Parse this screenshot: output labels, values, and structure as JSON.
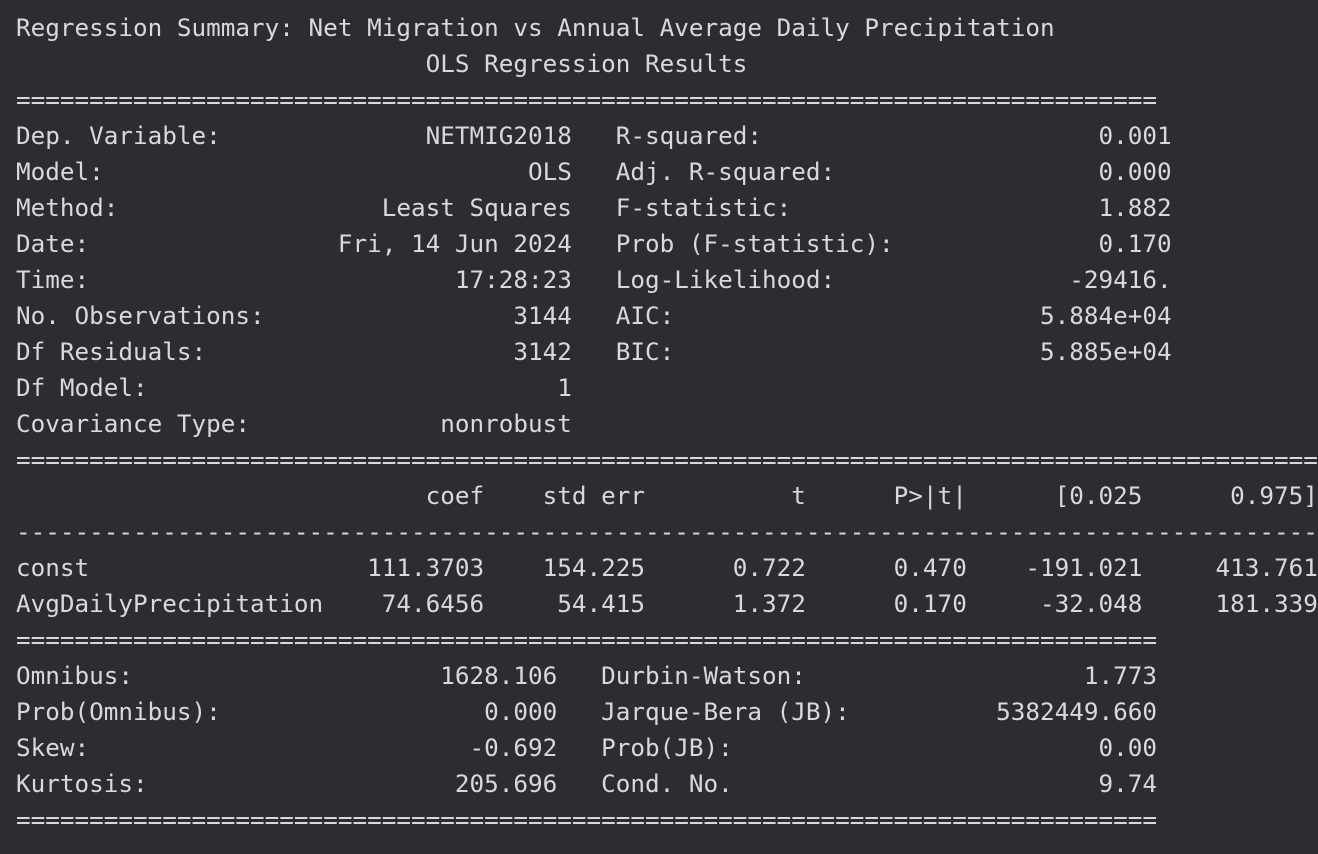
{
  "console": {
    "lines": [
      "Regression Summary: Net Migration vs Annual Average Daily Precipitation",
      "                            OLS Regression Results                            ",
      "==============================================================================",
      "Dep. Variable:              NETMIG2018   R-squared:                       0.001",
      "Model:                             OLS   Adj. R-squared:                  0.000",
      "Method:                  Least Squares   F-statistic:                     1.882",
      "Date:                 Fri, 14 Jun 2024   Prob (F-statistic):              0.170",
      "Time:                         17:28:23   Log-Likelihood:                -29416.",
      "No. Observations:                 3144   AIC:                         5.884e+04",
      "Df Residuals:                     3142   BIC:                         5.885e+04",
      "Df Model:                            1                                         ",
      "Covariance Type:             nonrobust                                         ",
      "=========================================================================================",
      "                            coef    std err          t      P>|t|      [0.025      0.975]",
      "-----------------------------------------------------------------------------------------",
      "const                   111.3703    154.225      0.722      0.470    -191.021     413.761",
      "AvgDailyPrecipitation    74.6456     54.415      1.372      0.170     -32.048     181.339",
      "==============================================================================",
      "Omnibus:                     1628.106   Durbin-Watson:                   1.773",
      "Prob(Omnibus):                  0.000   Jarque-Bera (JB):          5382449.660",
      "Skew:                          -0.692   Prob(JB):                         0.00",
      "Kurtosis:                     205.696   Cond. No.                         9.74",
      "=============================================================================="
    ]
  },
  "colors": {
    "background": "#2b2d31",
    "text": "#d7d9dd"
  }
}
